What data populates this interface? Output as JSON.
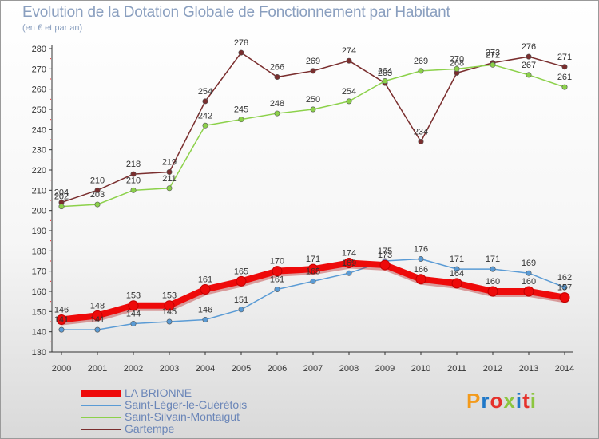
{
  "title": "Evolution de la Dotation Globale de Fonctionnement par Habitant",
  "subtitle": "(en € et par an)",
  "logo": {
    "text": "Proxiti",
    "colors": [
      "#f39a1b",
      "#1f78c8",
      "#e5312b",
      "#8cc63f",
      "#1f78c8",
      "#e5312b",
      "#8cc63f"
    ]
  },
  "chart_data": {
    "type": "line",
    "title": "Evolution de la Dotation Globale de Fonctionnement par Habitant",
    "ylabel": "(en € et par an)",
    "xlabel": "",
    "ylim": [
      130,
      280
    ],
    "yticks": [
      130,
      140,
      150,
      160,
      170,
      180,
      190,
      200,
      210,
      220,
      230,
      240,
      250,
      260,
      270,
      280
    ],
    "grid": false,
    "legend_position": "bottom-left",
    "categories": [
      "2000",
      "2001",
      "2002",
      "2003",
      "2004",
      "2005",
      "2006",
      "2007",
      "2008",
      "2009",
      "2010",
      "2011",
      "2012",
      "2013",
      "2014"
    ],
    "series": [
      {
        "name": "LA BRIONNE",
        "color": "#ee0a0a",
        "values": [
          146,
          148,
          153,
          153,
          161,
          165,
          170,
          171,
          174,
          173,
          166,
          164,
          160,
          160,
          157
        ],
        "labels": [
          "146",
          "148",
          "153",
          "153",
          "161",
          "165",
          "170",
          "171",
          "174",
          "173",
          "166",
          "164",
          "160",
          "160",
          "157"
        ]
      },
      {
        "name": "Saint-Léger-le-Guérétois",
        "color": "#5a9bd5",
        "values": [
          141,
          141,
          144,
          145,
          146,
          151,
          161,
          165,
          169,
          175,
          176,
          171,
          171,
          169,
          162
        ],
        "labels": [
          "141",
          "141",
          "144",
          "145",
          "146",
          "151",
          "161",
          "165",
          "169",
          "175",
          "176",
          "171",
          "171",
          "169",
          "162"
        ]
      },
      {
        "name": "Saint-Silvain-Montaigut",
        "color": "#8cd14a",
        "values": [
          202,
          203,
          210,
          211,
          242,
          245,
          248,
          250,
          254,
          264,
          269,
          270,
          272,
          267,
          261
        ],
        "labels": [
          "202",
          "203",
          "210",
          "211",
          "242",
          "245",
          "248",
          "250",
          "254",
          "264",
          "269",
          "270",
          "272",
          "267",
          "261"
        ]
      },
      {
        "name": "Gartempe",
        "color": "#7a2e2e",
        "values": [
          204,
          210,
          218,
          219,
          254,
          278,
          266,
          269,
          274,
          263,
          234,
          268,
          273,
          276,
          271
        ],
        "labels": [
          "204",
          "210",
          "218",
          "219",
          "254",
          "278",
          "266",
          "269",
          "274",
          "263",
          "234",
          "268",
          "273",
          "276",
          "271"
        ]
      }
    ]
  }
}
